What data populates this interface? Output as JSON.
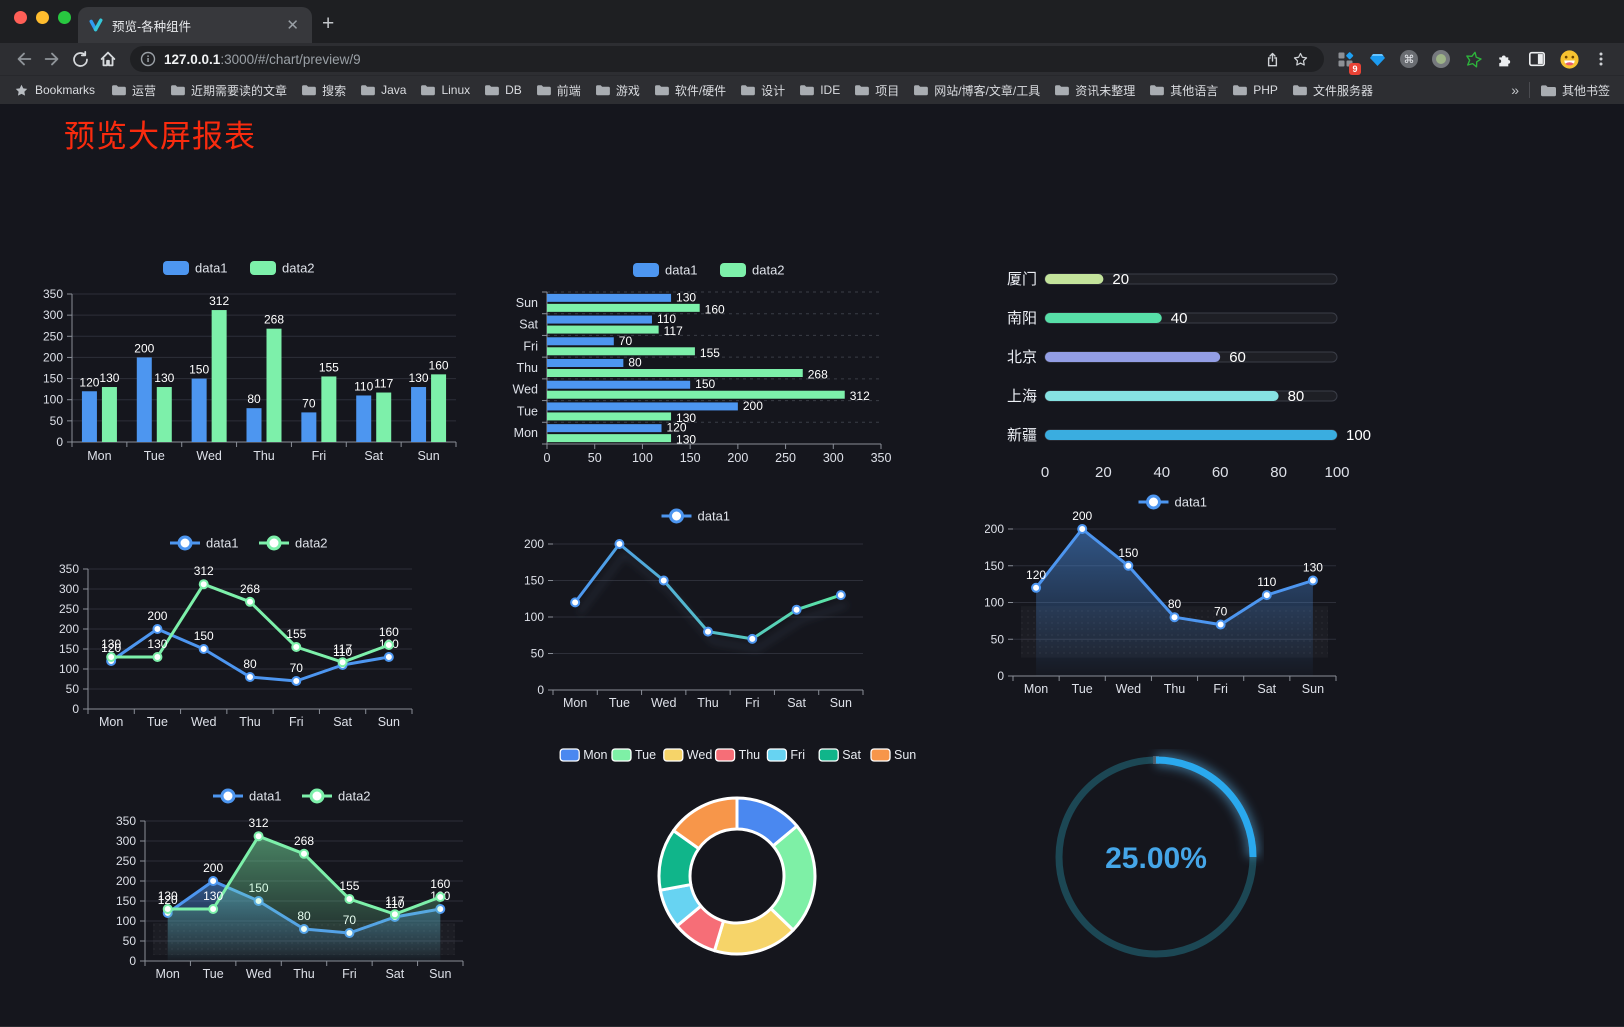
{
  "browser": {
    "tab_title": "预览-各种组件",
    "url_host": "127.0.0.1",
    "url_rest": ":3000/#/chart/preview/9",
    "bookmarks_label": "Bookmarks",
    "bookmark_folders": [
      "运营",
      "近期需要读的文章",
      "搜索",
      "Java",
      "Linux",
      "DB",
      "前端",
      "游戏",
      "软件/硬件",
      "设计",
      "IDE",
      "项目",
      "网站/博客/文章/工具",
      "资讯未整理",
      "其他语言",
      "PHP",
      "文件服务器"
    ],
    "overflow": "»",
    "other_bookmarks": "其他书签",
    "extension_badge": "9",
    "icons": [
      "back-icon",
      "forward-icon",
      "reload-icon",
      "home-icon",
      "info-icon",
      "share-icon",
      "star-icon",
      "extensions-grid-icon",
      "gem-icon",
      "command-icon",
      "record-icon",
      "green-star-icon",
      "puzzle-icon",
      "sidebar-icon",
      "emoji-icon",
      "menu-icon",
      "folder-icon",
      "new-tab-icon",
      "close-icon",
      "tab-favicon"
    ]
  },
  "page": {
    "title": "预览大屏报表",
    "title_color": "#f92b0e"
  },
  "palette": {
    "blue": "#4d96f0",
    "green": "#7df0aa",
    "accent_gauge": "#2aa9ee"
  },
  "chart_data": [
    {
      "type": "bar",
      "title": "grouped bar",
      "legend_position": "top",
      "grid": true,
      "categories": [
        "Mon",
        "Tue",
        "Wed",
        "Thu",
        "Fri",
        "Sat",
        "Sun"
      ],
      "series": [
        {
          "name": "data1",
          "color": "#4d96f0",
          "values": [
            120,
            200,
            150,
            80,
            70,
            110,
            130
          ]
        },
        {
          "name": "data2",
          "color": "#7df0aa",
          "values": [
            130,
            130,
            312,
            268,
            155,
            117,
            160
          ]
        }
      ],
      "ylim": [
        0,
        350
      ],
      "ytick": 50
    },
    {
      "type": "bar",
      "orientation": "horizontal",
      "title": "horizontal grouped bar",
      "legend_position": "top",
      "categories": [
        "Mon",
        "Tue",
        "Wed",
        "Thu",
        "Fri",
        "Sat",
        "Sun"
      ],
      "categories_note": "displayed Sun at top to Mon at bottom",
      "series": [
        {
          "name": "data1",
          "color": "#4d96f0",
          "values": [
            120,
            200,
            150,
            80,
            70,
            110,
            130
          ]
        },
        {
          "name": "data2",
          "color": "#7df0aa",
          "values": [
            130,
            130,
            312,
            268,
            155,
            117,
            160
          ]
        }
      ],
      "xlim": [
        0,
        350
      ],
      "xtick": 50
    },
    {
      "type": "bar",
      "subtype": "progress",
      "title": "horizontal progress bars",
      "items": [
        {
          "label": "厦门",
          "value": 20,
          "color": "#c3e39b"
        },
        {
          "label": "南阳",
          "value": 40,
          "color": "#57dfa8"
        },
        {
          "label": "北京",
          "value": 60,
          "color": "#939ee5"
        },
        {
          "label": "上海",
          "value": 80,
          "color": "#86e2e2"
        },
        {
          "label": "新疆",
          "value": 100,
          "color": "#3aade0"
        }
      ],
      "xlim": [
        0,
        100
      ],
      "xticks": [
        0,
        20,
        40,
        60,
        80,
        100
      ]
    },
    {
      "type": "line",
      "title": "two-series line",
      "legend_position": "top",
      "labels": true,
      "categories": [
        "Mon",
        "Tue",
        "Wed",
        "Thu",
        "Fri",
        "Sat",
        "Sun"
      ],
      "series": [
        {
          "name": "data1",
          "color": "#4d96f0",
          "values": [
            120,
            200,
            150,
            80,
            70,
            110,
            130
          ]
        },
        {
          "name": "data2",
          "color": "#7df0aa",
          "values": [
            130,
            130,
            312,
            268,
            155,
            117,
            160
          ]
        }
      ],
      "ylim": [
        0,
        350
      ],
      "ytick": 50
    },
    {
      "type": "line",
      "title": "gradient line with shadow",
      "legend_position": "top",
      "labels": false,
      "categories": [
        "Mon",
        "Tue",
        "Wed",
        "Thu",
        "Fri",
        "Sat",
        "Sun"
      ],
      "gradient": [
        "#4d96f0",
        "#5be6a3"
      ],
      "shadow": true,
      "series": [
        {
          "name": "data1",
          "color": "#4d96f0",
          "values": [
            120,
            200,
            150,
            80,
            70,
            110,
            130
          ]
        }
      ],
      "ylim": [
        0,
        200
      ],
      "ytick": 50
    },
    {
      "type": "area",
      "title": "area line",
      "legend_position": "top",
      "labels": true,
      "categories": [
        "Mon",
        "Tue",
        "Wed",
        "Thu",
        "Fri",
        "Sat",
        "Sun"
      ],
      "series": [
        {
          "name": "data1",
          "color": "#4d96f0",
          "values": [
            120,
            200,
            150,
            80,
            70,
            110,
            130
          ],
          "area": true
        }
      ],
      "ylim": [
        0,
        200
      ],
      "ytick": 50,
      "texture": [
        95,
        25
      ]
    },
    {
      "type": "area",
      "title": "two-series area line",
      "legend_position": "top",
      "labels": true,
      "categories": [
        "Mon",
        "Tue",
        "Wed",
        "Thu",
        "Fri",
        "Sat",
        "Sun"
      ],
      "series": [
        {
          "name": "data1",
          "color": "#4d96f0",
          "values": [
            120,
            200,
            150,
            80,
            70,
            110,
            130
          ],
          "area": true
        },
        {
          "name": "data2",
          "color": "#7df0aa",
          "values": [
            130,
            130,
            312,
            268,
            155,
            117,
            160
          ],
          "area": true
        }
      ],
      "ylim": [
        0,
        350
      ],
      "ytick": 50,
      "texture": [
        95,
        15
      ]
    },
    {
      "type": "pie",
      "subtype": "donut",
      "title": "donut",
      "legend_position": "top",
      "categories": [
        "Mon",
        "Tue",
        "Wed",
        "Thu",
        "Fri",
        "Sat",
        "Sun"
      ],
      "values": [
        120,
        200,
        150,
        80,
        70,
        110,
        130
      ],
      "colors": [
        "#4a88f0",
        "#7ef0a6",
        "#f6d469",
        "#f66e77",
        "#67d3f2",
        "#10b58a",
        "#f7964a"
      ]
    },
    {
      "type": "gauge",
      "title": "circular progress",
      "value": 25,
      "display": "25.00%",
      "color": "#2aa9ee",
      "track_color": "#1c4754",
      "text_color": "#45a6e8"
    }
  ]
}
